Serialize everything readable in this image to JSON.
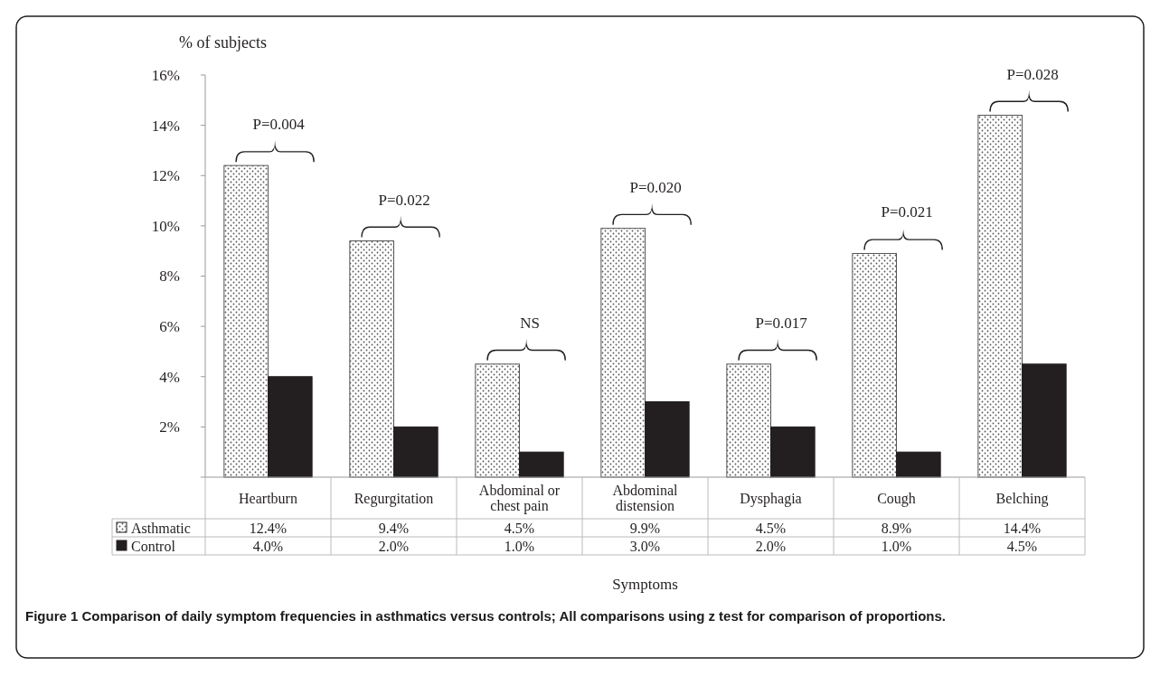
{
  "chart_data": {
    "type": "bar",
    "title": "Figure 1 Comparison of daily symptom frequencies in asthmatics versus controls; All comparisons using z test for comparison of proportions.",
    "xlabel": "Symptoms",
    "ylabel": "% of subjects",
    "categories": [
      "Heartburn",
      "Regurgitation",
      "Abdominal or chest pain",
      "Abdominal distension",
      "Dysphagia",
      "Cough",
      "Belching"
    ],
    "series": [
      {
        "name": "Asthmatic",
        "color": "#555555",
        "values": [
          12.4,
          9.4,
          4.5,
          9.9,
          4.5,
          8.9,
          14.4
        ],
        "value_labels": [
          "12.4%",
          "9.4%",
          "4.5%",
          "9.9%",
          "4.5%",
          "8.9%",
          "14.4%"
        ]
      },
      {
        "name": "Control",
        "color": "#231f20",
        "values": [
          4.0,
          2.0,
          1.0,
          3.0,
          2.0,
          1.0,
          4.5
        ],
        "value_labels": [
          "4.0%",
          "2.0%",
          "1.0%",
          "3.0%",
          "2.0%",
          "1.0%",
          "4.5%"
        ]
      }
    ],
    "ylim": [
      0,
      16
    ],
    "yticks": [
      {
        "value": 0,
        "label": null
      },
      {
        "value": 2,
        "label": "2%"
      },
      {
        "value": 4,
        "label": "4%"
      },
      {
        "value": 6,
        "label": "6%"
      },
      {
        "value": 8,
        "label": "8%"
      },
      {
        "value": 10,
        "label": "10%"
      },
      {
        "value": 12,
        "label": "12%"
      },
      {
        "value": 14,
        "label": "14%"
      },
      {
        "value": 16,
        "label": "16%"
      }
    ],
    "annotations": [
      "P=0.004",
      "P=0.022",
      "NS",
      "P=0.020",
      "P=0.017",
      "P=0.021",
      "P=0.028"
    ],
    "legend": "bottom left",
    "grid": false
  }
}
